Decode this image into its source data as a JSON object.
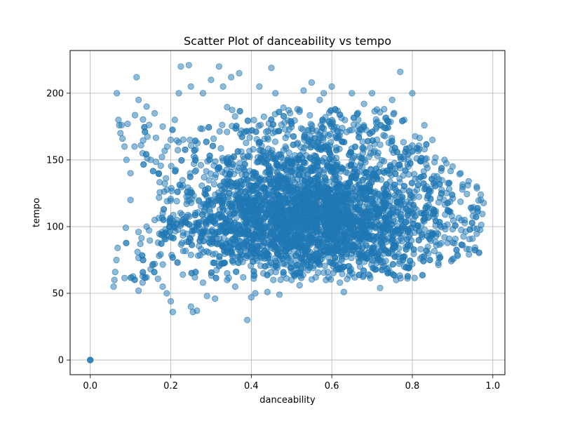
{
  "chart_data": {
    "type": "scatter",
    "title": "Scatter Plot of danceability vs tempo",
    "xlabel": "danceability",
    "ylabel": "tempo",
    "xlim": [
      -0.05,
      1.03
    ],
    "ylim": [
      -11,
      232
    ],
    "xticks": [
      0.0,
      0.2,
      0.4,
      0.6,
      0.8,
      1.0
    ],
    "xtick_labels": [
      "0.0",
      "0.2",
      "0.4",
      "0.6",
      "0.8",
      "1.0"
    ],
    "yticks": [
      0,
      50,
      100,
      150,
      200
    ],
    "ytick_labels": [
      "0",
      "50",
      "100",
      "150",
      "200"
    ],
    "grid": true,
    "point_color": "#1f77b4",
    "point_opacity": 0.5,
    "series": [
      {
        "points": [
          [
            0.0,
            0.0
          ],
          [
            0.0,
            0.0
          ],
          [
            0.0,
            0.0
          ],
          [
            0.058,
            55
          ],
          [
            0.06,
            60
          ],
          [
            0.062,
            66
          ],
          [
            0.065,
            75
          ],
          [
            0.068,
            84
          ],
          [
            0.07,
            180
          ],
          [
            0.072,
            176
          ],
          [
            0.075,
            170
          ],
          [
            0.066,
            200
          ],
          [
            0.08,
            166
          ],
          [
            0.085,
            160
          ],
          [
            0.09,
            150
          ],
          [
            0.1,
            140
          ],
          [
            0.1,
            120
          ],
          [
            0.115,
            212
          ],
          [
            0.12,
            52
          ],
          [
            0.13,
            58
          ],
          [
            0.14,
            62
          ],
          [
            0.15,
            68
          ],
          [
            0.16,
            72
          ],
          [
            0.18,
            55
          ],
          [
            0.19,
            50
          ],
          [
            0.2,
            44
          ],
          [
            0.205,
            36
          ],
          [
            0.21,
            180
          ],
          [
            0.22,
            200
          ],
          [
            0.225,
            220
          ],
          [
            0.245,
            221
          ],
          [
            0.25,
            40
          ],
          [
            0.255,
            36
          ],
          [
            0.265,
            37
          ],
          [
            0.29,
            48
          ],
          [
            0.31,
            46
          ],
          [
            0.32,
            220
          ],
          [
            0.35,
            212
          ],
          [
            0.37,
            215
          ],
          [
            0.36,
            55
          ],
          [
            0.4,
            47
          ],
          [
            0.39,
            30
          ],
          [
            0.41,
            50
          ],
          [
            0.45,
            219
          ],
          [
            0.44,
            51
          ],
          [
            0.47,
            49
          ],
          [
            0.5,
            60
          ],
          [
            0.52,
            56
          ],
          [
            0.55,
            208
          ],
          [
            0.58,
            200
          ],
          [
            0.6,
            205
          ],
          [
            0.62,
            58
          ],
          [
            0.63,
            51
          ],
          [
            0.65,
            200
          ],
          [
            0.7,
            200
          ],
          [
            0.72,
            54
          ],
          [
            0.75,
            195
          ],
          [
            0.77,
            216
          ],
          [
            0.76,
            60
          ],
          [
            0.8,
            200
          ],
          [
            0.8,
            72
          ],
          [
            0.83,
            176
          ],
          [
            0.85,
            165
          ],
          [
            0.88,
            150
          ],
          [
            0.9,
            145
          ],
          [
            0.92,
            140
          ],
          [
            0.94,
            134
          ],
          [
            0.96,
            130
          ],
          [
            0.97,
            124
          ],
          [
            0.95,
            112
          ],
          [
            0.93,
            105
          ],
          [
            0.9,
            98
          ],
          [
            0.88,
            92
          ],
          [
            0.86,
            86
          ],
          [
            0.84,
            80
          ],
          [
            0.82,
            76
          ],
          [
            0.12,
            195
          ],
          [
            0.14,
            190
          ],
          [
            0.16,
            185
          ],
          [
            0.18,
            175
          ],
          [
            0.2,
            165
          ],
          [
            0.25,
            205
          ],
          [
            0.28,
            200
          ],
          [
            0.3,
            210
          ],
          [
            0.33,
            205
          ],
          [
            0.42,
            205
          ],
          [
            0.46,
            200
          ],
          [
            0.53,
            202
          ],
          [
            0.57,
            195
          ],
          [
            0.68,
            192
          ],
          [
            0.73,
            188
          ],
          [
            0.78,
            180
          ],
          [
            0.67,
            70
          ],
          [
            0.71,
            68
          ],
          [
            0.74,
            66
          ],
          [
            0.78,
            70
          ],
          [
            0.34,
            60
          ],
          [
            0.38,
            62
          ],
          [
            0.43,
            65
          ],
          [
            0.48,
            64
          ],
          [
            0.56,
            62
          ],
          [
            0.59,
            66
          ],
          [
            0.26,
            62
          ],
          [
            0.23,
            64
          ],
          [
            0.28,
            58
          ],
          [
            0.11,
            160
          ],
          [
            0.13,
            155
          ],
          [
            0.15,
            150
          ],
          [
            0.17,
            140
          ],
          [
            0.12,
            96
          ],
          [
            0.14,
            100
          ],
          [
            0.16,
            105
          ],
          [
            0.18,
            110
          ]
        ]
      }
    ]
  }
}
